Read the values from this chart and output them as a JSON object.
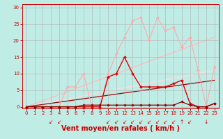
{
  "bg_color": "#c0ece6",
  "grid_color": "#b0b0b0",
  "xlabel": "Vent moyen/en rafales ( km/h )",
  "xlabel_color": "#cc0000",
  "xlabel_fontsize": 7,
  "tick_color": "#cc0000",
  "ylim": [
    -0.5,
    31
  ],
  "xlim": [
    -0.5,
    23.5
  ],
  "yticks": [
    0,
    5,
    10,
    15,
    20,
    25,
    30
  ],
  "xticks": [
    0,
    1,
    2,
    3,
    4,
    5,
    6,
    7,
    8,
    9,
    10,
    11,
    12,
    13,
    14,
    15,
    16,
    17,
    18,
    19,
    20,
    21,
    22,
    23
  ],
  "series": [
    {
      "label": "lightpink_jagged",
      "color": "#ffaaaa",
      "linewidth": 0.8,
      "marker": "D",
      "markersize": 2.0,
      "zorder": 2,
      "x": [
        0,
        1,
        2,
        3,
        4,
        5,
        6,
        7,
        8,
        9,
        10,
        11,
        12,
        13,
        14,
        15,
        16,
        17,
        18,
        19,
        20,
        21,
        22,
        23
      ],
      "y": [
        0,
        0,
        0,
        0,
        0,
        6,
        6,
        10,
        0,
        0,
        10,
        16,
        21,
        26,
        27,
        20,
        27,
        23,
        24,
        18,
        21,
        11,
        0,
        12
      ]
    },
    {
      "label": "pink_straight1",
      "color": "#ffbbbb",
      "linewidth": 0.9,
      "marker": null,
      "markersize": 0,
      "zorder": 1,
      "x": [
        0,
        23
      ],
      "y": [
        0,
        21
      ]
    },
    {
      "label": "pink_straight2",
      "color": "#ffdddd",
      "linewidth": 0.9,
      "marker": null,
      "markersize": 0,
      "zorder": 1,
      "x": [
        0,
        23
      ],
      "y": [
        0,
        11
      ]
    },
    {
      "label": "darkred_straight",
      "color": "#990000",
      "linewidth": 0.9,
      "marker": null,
      "markersize": 0,
      "zorder": 1,
      "x": [
        0,
        23
      ],
      "y": [
        0,
        8
      ]
    },
    {
      "label": "red_jagged",
      "color": "#dd0000",
      "linewidth": 1.0,
      "marker": "D",
      "markersize": 2.0,
      "zorder": 3,
      "x": [
        0,
        1,
        2,
        3,
        4,
        5,
        6,
        7,
        8,
        9,
        10,
        11,
        12,
        13,
        14,
        15,
        16,
        17,
        18,
        19,
        20,
        21,
        22,
        23
      ],
      "y": [
        0,
        0,
        0,
        0,
        0,
        0,
        0,
        0,
        0,
        0,
        9,
        10,
        15,
        10,
        6,
        6,
        6,
        6,
        7,
        8,
        1,
        0,
        0,
        1
      ]
    },
    {
      "label": "darkred_flat",
      "color": "#880000",
      "linewidth": 0.9,
      "marker": "D",
      "markersize": 1.8,
      "zorder": 3,
      "x": [
        0,
        1,
        2,
        3,
        4,
        5,
        6,
        7,
        8,
        9,
        10,
        11,
        12,
        13,
        14,
        15,
        16,
        17,
        18,
        19,
        20,
        21,
        22,
        23
      ],
      "y": [
        0,
        0,
        0,
        0,
        0,
        0,
        0,
        0.5,
        0.5,
        0.5,
        0.5,
        0.5,
        0.5,
        0.5,
        0.5,
        0.5,
        0.5,
        0.5,
        0.5,
        1.5,
        0.5,
        0,
        0,
        1
      ]
    }
  ],
  "arrows": {
    "diagonal_positions": [
      3,
      4,
      10,
      11,
      12,
      13,
      14,
      15,
      16,
      17,
      18,
      20
    ],
    "up_positions": [
      19
    ],
    "down_positions": [
      22
    ]
  }
}
